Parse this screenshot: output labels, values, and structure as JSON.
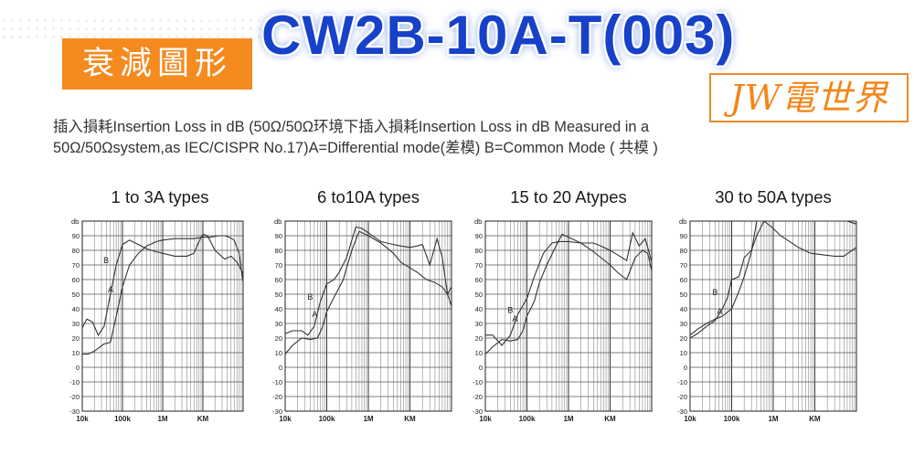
{
  "header": {
    "badge": "衰減圖形",
    "model": "CW2B-10A-T(003)",
    "brand": "JW電世界"
  },
  "description": {
    "line1": "插入損耗Insertion Loss in dB (50Ω/50Ω环境下插入損耗Insertion Loss in dB Measured in a",
    "line2": "50Ω/50Ωsystem,as IEC/CISPR No.17)A=Differential mode(差模) B=Common Mode ( 共模 )"
  },
  "colors": {
    "badge_bg": "#f58a1f",
    "model_text": "#1641c8",
    "brand_text": "#f38619",
    "curve": "#333333"
  },
  "chart_data": [
    {
      "type": "line",
      "title": "1 to 3A types",
      "ylabel": "db",
      "x_scale": "log",
      "xlim": [
        10000,
        100000000
      ],
      "ylim": [
        -30,
        100
      ],
      "yticks": [
        90,
        80,
        70,
        60,
        50,
        40,
        30,
        20,
        10,
        0,
        -10,
        -20,
        -30
      ],
      "xticks": [
        {
          "value": 10000,
          "label": "10k"
        },
        {
          "value": 100000,
          "label": "100k"
        },
        {
          "value": 1000000,
          "label": "1M"
        },
        {
          "value": 10000000,
          "label": "KM"
        }
      ],
      "grid": true,
      "series": [
        {
          "name": "A",
          "x": [
            10000,
            14000,
            20000,
            35000,
            50000,
            70000,
            100000,
            150000,
            250000,
            400000,
            700000,
            1000000,
            2000000,
            4000000,
            6000000,
            10000000,
            15000000,
            25000000,
            35000000,
            45000000,
            60000000,
            80000000,
            100000000
          ],
          "y": [
            9,
            9,
            11,
            16,
            17,
            35,
            55,
            70,
            78,
            83,
            86,
            87,
            88,
            88,
            88,
            89,
            89,
            90,
            90,
            89,
            87,
            78,
            58
          ]
        },
        {
          "name": "B",
          "x": [
            10000,
            13000,
            18000,
            25000,
            35000,
            50000,
            70000,
            100000,
            150000,
            250000,
            400000,
            700000,
            1000000,
            2000000,
            4000000,
            6000000,
            8000000,
            10000000,
            13000000,
            20000000,
            35000000,
            50000000,
            70000000,
            100000000
          ],
          "y": [
            27,
            33,
            31,
            22,
            28,
            50,
            70,
            84,
            87,
            84,
            81,
            79,
            78,
            76,
            76,
            78,
            86,
            91,
            90,
            80,
            74,
            76,
            72,
            64
          ]
        }
      ]
    },
    {
      "type": "line",
      "title": "6 to10A types",
      "ylabel": "db",
      "x_scale": "log",
      "xlim": [
        10000,
        100000000
      ],
      "ylim": [
        -30,
        100
      ],
      "yticks": [
        90,
        80,
        70,
        60,
        50,
        40,
        30,
        20,
        10,
        0,
        -10,
        -20,
        -30
      ],
      "xticks": [
        {
          "value": 10000,
          "label": "10k"
        },
        {
          "value": 100000,
          "label": "100k"
        },
        {
          "value": 1000000,
          "label": "1M"
        },
        {
          "value": 10000000,
          "label": "KM"
        }
      ],
      "grid": true,
      "series": [
        {
          "name": "A",
          "x": [
            10000,
            15000,
            25000,
            40000,
            60000,
            80000,
            100000,
            150000,
            250000,
            300000,
            400000,
            600000,
            1000000,
            2000000,
            4000000,
            6000000,
            10000000,
            15000000,
            25000000,
            40000000,
            60000000,
            80000000,
            100000000
          ],
          "y": [
            9,
            15,
            20,
            19,
            20,
            28,
            38,
            48,
            60,
            68,
            80,
            93,
            90,
            85,
            78,
            72,
            68,
            65,
            60,
            58,
            55,
            50,
            42
          ]
        },
        {
          "name": "B",
          "x": [
            10000,
            15000,
            25000,
            35000,
            50000,
            70000,
            100000,
            150000,
            200000,
            300000,
            500000,
            700000,
            1000000,
            2000000,
            4000000,
            6000000,
            10000000,
            15000000,
            20000000,
            30000000,
            45000000,
            60000000,
            80000000,
            100000000
          ],
          "y": [
            23,
            25,
            25,
            22,
            28,
            45,
            57,
            60,
            65,
            75,
            96,
            95,
            92,
            86,
            84,
            83,
            82,
            83,
            84,
            70,
            88,
            75,
            50,
            55
          ]
        }
      ]
    },
    {
      "type": "line",
      "title": "15 to 20 Atypes",
      "ylabel": "db",
      "x_scale": "log",
      "xlim": [
        10000,
        100000000
      ],
      "ylim": [
        -30,
        100
      ],
      "yticks": [
        90,
        80,
        70,
        60,
        50,
        40,
        30,
        20,
        10,
        0,
        -10,
        -20,
        -30
      ],
      "xticks": [
        {
          "value": 10000,
          "label": "10k"
        },
        {
          "value": 100000,
          "label": "100k"
        },
        {
          "value": 1000000,
          "label": "1M"
        },
        {
          "value": 10000000,
          "label": "KM"
        }
      ],
      "grid": true,
      "series": [
        {
          "name": "A",
          "x": [
            10000,
            15000,
            25000,
            40000,
            60000,
            80000,
            100000,
            150000,
            200000,
            300000,
            500000,
            700000,
            1000000,
            2000000,
            4000000,
            6000000,
            10000000,
            15000000,
            25000000,
            40000000,
            60000000,
            80000000,
            100000000
          ],
          "y": [
            9,
            14,
            19,
            18,
            19,
            25,
            35,
            45,
            58,
            70,
            83,
            91,
            89,
            85,
            79,
            75,
            70,
            65,
            60,
            75,
            80,
            78,
            66
          ]
        },
        {
          "name": "B",
          "x": [
            10000,
            15000,
            25000,
            40000,
            60000,
            100000,
            150000,
            250000,
            400000,
            600000,
            1000000,
            2000000,
            4000000,
            6000000,
            10000000,
            15000000,
            25000000,
            35000000,
            50000000,
            70000000,
            100000000
          ],
          "y": [
            22,
            22,
            15,
            22,
            36,
            47,
            62,
            78,
            85,
            86,
            86,
            85,
            85,
            83,
            80,
            77,
            73,
            92,
            83,
            88,
            72
          ]
        }
      ]
    },
    {
      "type": "line",
      "title": "30 to 50A types",
      "ylabel": "db",
      "x_scale": "log",
      "xlim": [
        10000,
        100000000
      ],
      "ylim": [
        -30,
        100
      ],
      "yticks": [
        90,
        80,
        70,
        60,
        50,
        40,
        30,
        20,
        10,
        0,
        -10,
        -20,
        -30
      ],
      "xticks": [
        {
          "value": 10000,
          "label": "10k"
        },
        {
          "value": 100000,
          "label": "100k"
        },
        {
          "value": 1000000,
          "label": "1M"
        },
        {
          "value": 10000000,
          "label": "KM"
        }
      ],
      "grid": true,
      "series": [
        {
          "name": "A",
          "x": [
            10000,
            15000,
            25000,
            40000,
            60000,
            100000,
            150000,
            200000,
            300000,
            400000,
            500000,
            600000,
            1000000,
            2000000,
            4000000,
            8000000,
            15000000,
            30000000,
            60000000,
            100000000
          ],
          "y": [
            22,
            26,
            30,
            33,
            35,
            40,
            52,
            62,
            79,
            100,
            100,
            100,
            100,
            100,
            100,
            100,
            100,
            100,
            100,
            98
          ]
        },
        {
          "name": "B",
          "x": [
            10000,
            15000,
            25000,
            40000,
            60000,
            80000,
            100000,
            150000,
            200000,
            300000,
            400000,
            600000,
            1000000,
            1500000,
            2500000,
            4000000,
            8000000,
            15000000,
            30000000,
            50000000,
            70000000,
            100000000
          ],
          "y": [
            20,
            23,
            28,
            32,
            40,
            48,
            60,
            62,
            75,
            80,
            90,
            100,
            95,
            90,
            86,
            82,
            78,
            77,
            76,
            76,
            79,
            82
          ]
        }
      ]
    }
  ]
}
